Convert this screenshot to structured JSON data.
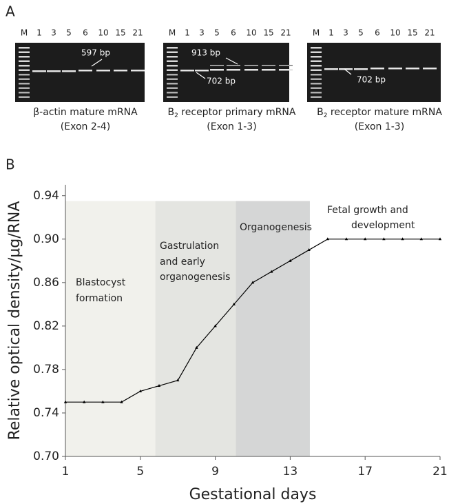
{
  "panel_a": {
    "label": "A",
    "gels": [
      {
        "lanes": [
          "M",
          "1",
          "3",
          "5",
          "6",
          "10",
          "15",
          "21"
        ],
        "annotations": [
          "597 bp"
        ],
        "caption_parts": [
          "β-actin mature mRNA"
        ],
        "caption_line2": "(Exon 2-4)"
      },
      {
        "lanes": [
          "M",
          "1",
          "3",
          "5",
          "6",
          "10",
          "15",
          "21"
        ],
        "annotations": [
          "913 bp",
          "702 bp"
        ],
        "caption_parts": [
          "B",
          "2",
          " receptor primary mRNA"
        ],
        "caption_line2": "(Exon 1-3)"
      },
      {
        "lanes": [
          "M",
          "1",
          "3",
          "5",
          "6",
          "10",
          "15",
          "21"
        ],
        "annotations": [
          "702 bp"
        ],
        "caption_parts": [
          "B",
          "2",
          "  receptor mature mRNA"
        ],
        "caption_line2": "(Exon 1-3)"
      }
    ]
  },
  "chart_data": {
    "type": "line",
    "panel_label": "B",
    "x_label": "Gestational days",
    "y_label": "Relative optical density/μg/RNA",
    "x": [
      1,
      2,
      3,
      4,
      5,
      6,
      7,
      8,
      9,
      10,
      11,
      12,
      13,
      14,
      15,
      16,
      17,
      18,
      19,
      20,
      21
    ],
    "series": [
      {
        "color": "#000000",
        "values": [
          0.75,
          0.75,
          0.75,
          0.75,
          0.76,
          0.765,
          0.77,
          0.8,
          0.82,
          0.84,
          0.86,
          0.87,
          0.88,
          0.89,
          0.9,
          0.9,
          0.9,
          0.9,
          0.9,
          0.9,
          0.9
        ]
      }
    ],
    "xlim": [
      1,
      21
    ],
    "xticks": [
      1,
      5,
      9,
      13,
      17,
      21
    ],
    "ylim": [
      0.7,
      0.95
    ],
    "yticks": [
      {
        "value": 0.7,
        "label": "0.70"
      },
      0.74,
      0.78,
      0.82,
      0.86,
      {
        "value": 0.9,
        "label": "0.90"
      },
      0.94
    ],
    "phases": [
      {
        "label_lines": [
          "Blastocyst",
          "formation"
        ],
        "start": 1,
        "end": 5.8,
        "top": 0.935,
        "color": "#f1f1ec"
      },
      {
        "label_lines": [
          "Gastrulation",
          "and  early",
          "organogenesis"
        ],
        "start": 5.8,
        "end": 10.1,
        "top": 0.935,
        "color": "#e4e5e1"
      },
      {
        "label_lines": [
          "Organogenesis"
        ],
        "start": 10.1,
        "end": 14.05,
        "top": 0.935,
        "color": "#d5d6d6"
      }
    ],
    "annotation_lines": [
      "Fetal growth and",
      "development"
    ]
  }
}
